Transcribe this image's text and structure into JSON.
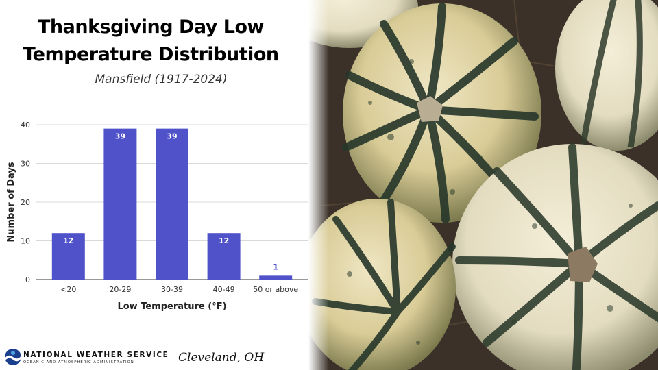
{
  "title_line1": "Thanksgiving Day Low",
  "title_line2": "Temperature Distribution",
  "subtitle": "Mansfield (1917-2024)",
  "footer": {
    "agency": "NATIONAL WEATHER SERVICE",
    "agency_sub": "OCEANIC AND ATMOSPHERIC ADMINISTRATION",
    "office": "Cleveland, OH"
  },
  "photo": {
    "subject": "pumpkins-photo"
  },
  "chart_data": {
    "type": "bar",
    "categories": [
      "<20",
      "20-29",
      "30-39",
      "40-49",
      "50 or above"
    ],
    "values": [
      12,
      39,
      39,
      12,
      1
    ],
    "xlabel": "Low Temperature (°F)",
    "ylabel": "Number of Days",
    "ylim": [
      0,
      40
    ],
    "yticks": [
      0,
      10,
      20,
      30,
      40
    ],
    "grid": true,
    "bar_color": "#4f52c8",
    "label_color_inside": "#ffffff",
    "label_color_outside": "#4f52c8"
  }
}
